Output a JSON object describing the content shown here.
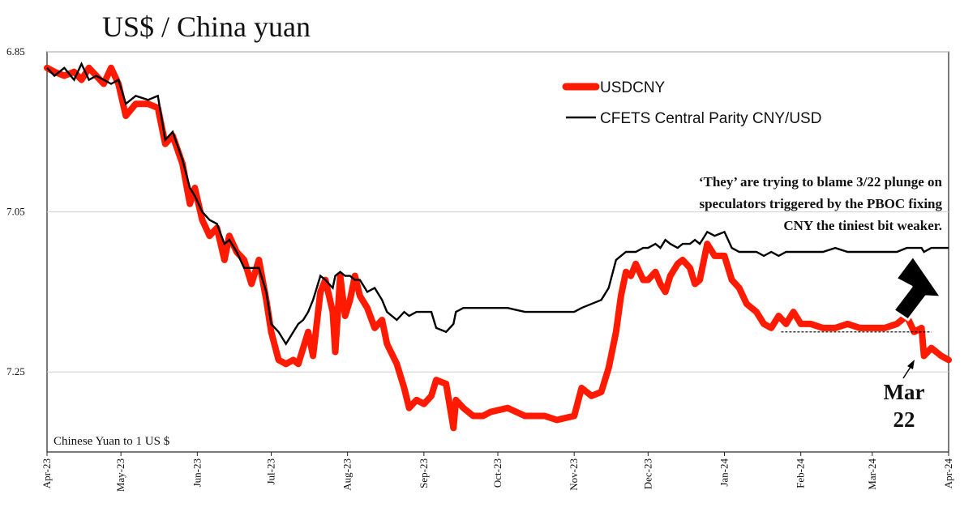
{
  "chart_data": {
    "type": "line",
    "title": "US$ / China yuan",
    "ylabel": "Chinese Yuan to 1 US $",
    "xlabel": "",
    "y_inverted": true,
    "ylim": [
      6.85,
      7.35
    ],
    "xlim": [
      "2023-04-01",
      "2024-04-01"
    ],
    "y_ticks": [
      "6.85",
      "7.05",
      "7.25"
    ],
    "x_ticks": [
      {
        "label": "Apr-23",
        "date": "2023-04-01"
      },
      {
        "label": "May-23",
        "date": "2023-05-01"
      },
      {
        "label": "Jun-23",
        "date": "2023-06-01"
      },
      {
        "label": "Jul-23",
        "date": "2023-07-01"
      },
      {
        "label": "Aug-23",
        "date": "2023-08-01"
      },
      {
        "label": "Sep-23",
        "date": "2023-09-01"
      },
      {
        "label": "Oct-23",
        "date": "2023-10-01"
      },
      {
        "label": "Nov-23",
        "date": "2023-11-01"
      },
      {
        "label": "Dec-23",
        "date": "2023-12-01"
      },
      {
        "label": "Jan-24",
        "date": "2024-01-01"
      },
      {
        "label": "Feb-24",
        "date": "2024-02-01"
      },
      {
        "label": "Mar-24",
        "date": "2024-03-01"
      },
      {
        "label": "Apr-24",
        "date": "2024-04-01"
      }
    ],
    "grid": "horizontal",
    "legend_position": "top-right",
    "series": [
      {
        "name": "USDCNY",
        "color": "#ff1a00",
        "points": [
          [
            "2023-04-01",
            6.87
          ],
          [
            "2023-04-04",
            6.875
          ],
          [
            "2023-04-08",
            6.88
          ],
          [
            "2023-04-12",
            6.875
          ],
          [
            "2023-04-15",
            6.885
          ],
          [
            "2023-04-18",
            6.87
          ],
          [
            "2023-04-21",
            6.88
          ],
          [
            "2023-04-24",
            6.89
          ],
          [
            "2023-04-27",
            6.87
          ],
          [
            "2023-04-30",
            6.89
          ],
          [
            "2023-05-03",
            6.93
          ],
          [
            "2023-05-07",
            6.915
          ],
          [
            "2023-05-12",
            6.915
          ],
          [
            "2023-05-16",
            6.92
          ],
          [
            "2023-05-19",
            6.965
          ],
          [
            "2023-05-22",
            6.955
          ],
          [
            "2023-05-26",
            6.99
          ],
          [
            "2023-05-29",
            7.04
          ],
          [
            "2023-05-31",
            7.02
          ],
          [
            "2023-06-03",
            7.06
          ],
          [
            "2023-06-06",
            7.08
          ],
          [
            "2023-06-09",
            7.07
          ],
          [
            "2023-06-12",
            7.11
          ],
          [
            "2023-06-14",
            7.08
          ],
          [
            "2023-06-17",
            7.1
          ],
          [
            "2023-06-20",
            7.11
          ],
          [
            "2023-06-23",
            7.14
          ],
          [
            "2023-06-26",
            7.11
          ],
          [
            "2023-06-29",
            7.16
          ],
          [
            "2023-07-01",
            7.2
          ],
          [
            "2023-07-04",
            7.235
          ],
          [
            "2023-07-07",
            7.24
          ],
          [
            "2023-07-10",
            7.235
          ],
          [
            "2023-07-12",
            7.24
          ],
          [
            "2023-07-14",
            7.22
          ],
          [
            "2023-07-16",
            7.2
          ],
          [
            "2023-07-18",
            7.23
          ],
          [
            "2023-07-21",
            7.15
          ],
          [
            "2023-07-23",
            7.135
          ],
          [
            "2023-07-26",
            7.175
          ],
          [
            "2023-07-27",
            7.225
          ],
          [
            "2023-07-29",
            7.13
          ],
          [
            "2023-07-31",
            7.18
          ],
          [
            "2023-08-02",
            7.16
          ],
          [
            "2023-08-04",
            7.13
          ],
          [
            "2023-08-06",
            7.155
          ],
          [
            "2023-08-09",
            7.17
          ],
          [
            "2023-08-12",
            7.195
          ],
          [
            "2023-08-15",
            7.185
          ],
          [
            "2023-08-17",
            7.215
          ],
          [
            "2023-08-21",
            7.24
          ],
          [
            "2023-08-24",
            7.27
          ],
          [
            "2023-08-26",
            7.295
          ],
          [
            "2023-08-29",
            7.285
          ],
          [
            "2023-09-01",
            7.29
          ],
          [
            "2023-09-04",
            7.28
          ],
          [
            "2023-09-06",
            7.26
          ],
          [
            "2023-09-10",
            7.265
          ],
          [
            "2023-09-13",
            7.32
          ],
          [
            "2023-09-14",
            7.285
          ],
          [
            "2023-09-17",
            7.295
          ],
          [
            "2023-09-21",
            7.305
          ],
          [
            "2023-09-25",
            7.305
          ],
          [
            "2023-09-28",
            7.3
          ],
          [
            "2023-10-05",
            7.295
          ],
          [
            "2023-10-12",
            7.305
          ],
          [
            "2023-10-20",
            7.305
          ],
          [
            "2023-10-25",
            7.31
          ],
          [
            "2023-11-01",
            7.305
          ],
          [
            "2023-11-04",
            7.27
          ],
          [
            "2023-11-08",
            7.28
          ],
          [
            "2023-11-12",
            7.275
          ],
          [
            "2023-11-15",
            7.245
          ],
          [
            "2023-11-18",
            7.2
          ],
          [
            "2023-11-20",
            7.155
          ],
          [
            "2023-11-22",
            7.125
          ],
          [
            "2023-11-24",
            7.13
          ],
          [
            "2023-11-26",
            7.115
          ],
          [
            "2023-11-29",
            7.135
          ],
          [
            "2023-12-01",
            7.135
          ],
          [
            "2023-12-04",
            7.125
          ],
          [
            "2023-12-06",
            7.14
          ],
          [
            "2023-12-08",
            7.15
          ],
          [
            "2023-12-10",
            7.13
          ],
          [
            "2023-12-13",
            7.115
          ],
          [
            "2023-12-15",
            7.11
          ],
          [
            "2023-12-18",
            7.12
          ],
          [
            "2023-12-20",
            7.14
          ],
          [
            "2023-12-22",
            7.135
          ],
          [
            "2023-12-25",
            7.09
          ],
          [
            "2023-12-28",
            7.105
          ],
          [
            "2024-01-01",
            7.105
          ],
          [
            "2024-01-04",
            7.135
          ],
          [
            "2024-01-07",
            7.145
          ],
          [
            "2024-01-10",
            7.165
          ],
          [
            "2024-01-14",
            7.175
          ],
          [
            "2024-01-17",
            7.19
          ],
          [
            "2024-01-20",
            7.195
          ],
          [
            "2024-01-23",
            7.18
          ],
          [
            "2024-01-26",
            7.19
          ],
          [
            "2024-01-29",
            7.175
          ],
          [
            "2024-02-01",
            7.19
          ],
          [
            "2024-02-05",
            7.19
          ],
          [
            "2024-02-10",
            7.195
          ],
          [
            "2024-02-15",
            7.195
          ],
          [
            "2024-02-20",
            7.19
          ],
          [
            "2024-02-25",
            7.195
          ],
          [
            "2024-03-01",
            7.195
          ],
          [
            "2024-03-06",
            7.195
          ],
          [
            "2024-03-11",
            7.19
          ],
          [
            "2024-03-15",
            7.18
          ],
          [
            "2024-03-18",
            7.2
          ],
          [
            "2024-03-21",
            7.195
          ],
          [
            "2024-03-22",
            7.23
          ],
          [
            "2024-03-25",
            7.22
          ],
          [
            "2024-03-27",
            7.225
          ],
          [
            "2024-03-29",
            7.23
          ],
          [
            "2024-04-01",
            7.235
          ]
        ]
      },
      {
        "name": "CFETS Central Parity CNY/USD",
        "color": "#000000",
        "points": [
          [
            "2023-04-01",
            6.87
          ],
          [
            "2023-04-04",
            6.88
          ],
          [
            "2023-04-08",
            6.87
          ],
          [
            "2023-04-12",
            6.885
          ],
          [
            "2023-04-15",
            6.865
          ],
          [
            "2023-04-18",
            6.885
          ],
          [
            "2023-04-21",
            6.88
          ],
          [
            "2023-04-24",
            6.885
          ],
          [
            "2023-04-27",
            6.89
          ],
          [
            "2023-04-30",
            6.885
          ],
          [
            "2023-05-03",
            6.915
          ],
          [
            "2023-05-07",
            6.905
          ],
          [
            "2023-05-12",
            6.91
          ],
          [
            "2023-05-16",
            6.905
          ],
          [
            "2023-05-19",
            6.96
          ],
          [
            "2023-05-22",
            6.95
          ],
          [
            "2023-05-26",
            6.985
          ],
          [
            "2023-05-29",
            7.02
          ],
          [
            "2023-05-31",
            7.03
          ],
          [
            "2023-06-03",
            7.05
          ],
          [
            "2023-06-06",
            7.06
          ],
          [
            "2023-06-09",
            7.065
          ],
          [
            "2023-06-12",
            7.09
          ],
          [
            "2023-06-14",
            7.085
          ],
          [
            "2023-06-17",
            7.1
          ],
          [
            "2023-06-20",
            7.12
          ],
          [
            "2023-06-23",
            7.12
          ],
          [
            "2023-06-26",
            7.12
          ],
          [
            "2023-06-29",
            7.15
          ],
          [
            "2023-07-01",
            7.19
          ],
          [
            "2023-07-04",
            7.2
          ],
          [
            "2023-07-07",
            7.215
          ],
          [
            "2023-07-10",
            7.2
          ],
          [
            "2023-07-12",
            7.19
          ],
          [
            "2023-07-14",
            7.185
          ],
          [
            "2023-07-16",
            7.175
          ],
          [
            "2023-07-18",
            7.16
          ],
          [
            "2023-07-21",
            7.13
          ],
          [
            "2023-07-23",
            7.135
          ],
          [
            "2023-07-26",
            7.145
          ],
          [
            "2023-07-27",
            7.13
          ],
          [
            "2023-07-29",
            7.125
          ],
          [
            "2023-07-31",
            7.13
          ],
          [
            "2023-08-02",
            7.13
          ],
          [
            "2023-08-04",
            7.135
          ],
          [
            "2023-08-06",
            7.135
          ],
          [
            "2023-08-09",
            7.15
          ],
          [
            "2023-08-12",
            7.145
          ],
          [
            "2023-08-15",
            7.16
          ],
          [
            "2023-08-17",
            7.175
          ],
          [
            "2023-08-21",
            7.185
          ],
          [
            "2023-08-24",
            7.175
          ],
          [
            "2023-08-26",
            7.18
          ],
          [
            "2023-08-29",
            7.175
          ],
          [
            "2023-09-01",
            7.175
          ],
          [
            "2023-09-04",
            7.175
          ],
          [
            "2023-09-06",
            7.195
          ],
          [
            "2023-09-10",
            7.2
          ],
          [
            "2023-09-13",
            7.19
          ],
          [
            "2023-09-14",
            7.175
          ],
          [
            "2023-09-17",
            7.17
          ],
          [
            "2023-09-21",
            7.17
          ],
          [
            "2023-09-25",
            7.17
          ],
          [
            "2023-09-28",
            7.17
          ],
          [
            "2023-10-05",
            7.17
          ],
          [
            "2023-10-12",
            7.175
          ],
          [
            "2023-10-20",
            7.175
          ],
          [
            "2023-10-25",
            7.175
          ],
          [
            "2023-11-01",
            7.175
          ],
          [
            "2023-11-04",
            7.17
          ],
          [
            "2023-11-08",
            7.165
          ],
          [
            "2023-11-12",
            7.16
          ],
          [
            "2023-11-15",
            7.145
          ],
          [
            "2023-11-18",
            7.11
          ],
          [
            "2023-11-20",
            7.105
          ],
          [
            "2023-11-22",
            7.1
          ],
          [
            "2023-11-24",
            7.1
          ],
          [
            "2023-11-26",
            7.1
          ],
          [
            "2023-11-29",
            7.095
          ],
          [
            "2023-12-01",
            7.095
          ],
          [
            "2023-12-04",
            7.09
          ],
          [
            "2023-12-06",
            7.095
          ],
          [
            "2023-12-08",
            7.085
          ],
          [
            "2023-12-10",
            7.09
          ],
          [
            "2023-12-13",
            7.095
          ],
          [
            "2023-12-15",
            7.09
          ],
          [
            "2023-12-18",
            7.09
          ],
          [
            "2023-12-20",
            7.085
          ],
          [
            "2023-12-22",
            7.09
          ],
          [
            "2023-12-25",
            7.075
          ],
          [
            "2023-12-28",
            7.08
          ],
          [
            "2024-01-01",
            7.075
          ],
          [
            "2024-01-04",
            7.095
          ],
          [
            "2024-01-07",
            7.1
          ],
          [
            "2024-01-10",
            7.1
          ],
          [
            "2024-01-14",
            7.1
          ],
          [
            "2024-01-17",
            7.105
          ],
          [
            "2024-01-20",
            7.1
          ],
          [
            "2024-01-23",
            7.105
          ],
          [
            "2024-01-26",
            7.1
          ],
          [
            "2024-01-29",
            7.1
          ],
          [
            "2024-02-01",
            7.1
          ],
          [
            "2024-02-05",
            7.1
          ],
          [
            "2024-02-10",
            7.1
          ],
          [
            "2024-02-15",
            7.095
          ],
          [
            "2024-02-20",
            7.1
          ],
          [
            "2024-02-25",
            7.1
          ],
          [
            "2024-03-01",
            7.1
          ],
          [
            "2024-03-06",
            7.1
          ],
          [
            "2024-03-11",
            7.1
          ],
          [
            "2024-03-15",
            7.095
          ],
          [
            "2024-03-18",
            7.095
          ],
          [
            "2024-03-21",
            7.095
          ],
          [
            "2024-03-22",
            7.1
          ],
          [
            "2024-03-25",
            7.095
          ],
          [
            "2024-03-27",
            7.095
          ],
          [
            "2024-03-29",
            7.095
          ],
          [
            "2024-04-01",
            7.095
          ]
        ]
      }
    ],
    "annotations": {
      "note_lines": [
        "‘They’ are trying to blame 3/22 plunge on",
        "speculators triggered by the PBOC fixing",
        "CNY the tiniest bit weaker."
      ],
      "mar_label_lines": [
        "Mar",
        "22"
      ],
      "reference_line": {
        "y": 7.2,
        "x_start": "2024-01-24",
        "x_end": "2024-03-25"
      }
    },
    "caption": "Chinese Yuan to 1 US $"
  }
}
